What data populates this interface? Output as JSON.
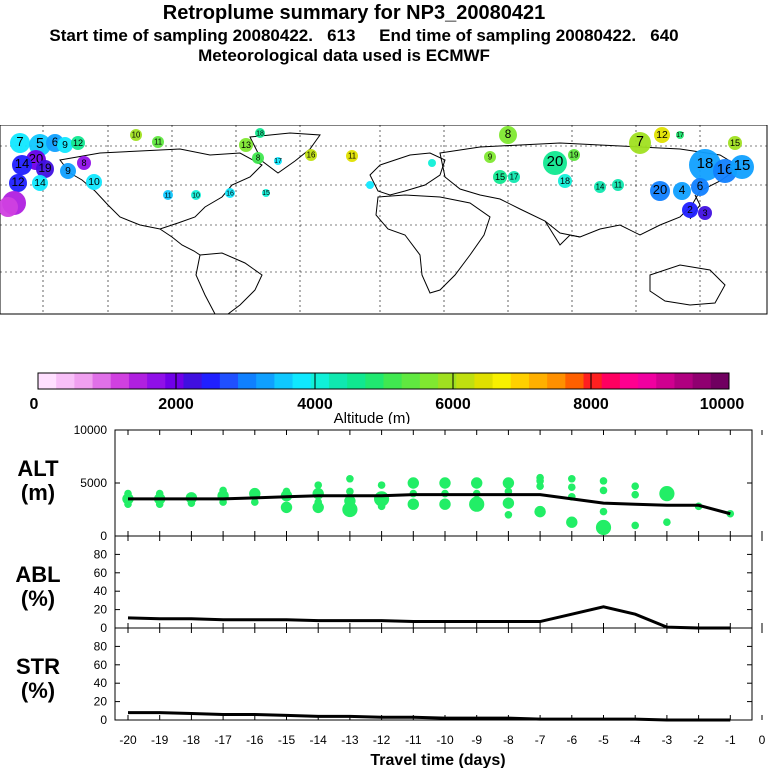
{
  "header": {
    "title": "Retroplume summary for NP3_20080421",
    "sampling": "Start time of sampling 20080422.   613     End time of sampling 20080422.   640",
    "met": "Meteorological data used is ECMWF"
  },
  "colors": {
    "marker": "#22ee66",
    "line": "#000000",
    "colorbar": [
      "#ffe0ff",
      "#f8c0f8",
      "#f0a0f0",
      "#e070e8",
      "#d040e0",
      "#b020e0",
      "#9010e8",
      "#7000e8",
      "#4010e0",
      "#2020ff",
      "#2050ff",
      "#1080ff",
      "#10a0ff",
      "#10c8ff",
      "#10e8ff",
      "#10f0d8",
      "#10e8b0",
      "#10e890",
      "#20e870",
      "#40e850",
      "#60e840",
      "#80e830",
      "#a0e020",
      "#c0e010",
      "#e0e000",
      "#f8f000",
      "#ffd000",
      "#ffb000",
      "#ff9000",
      "#ff6000",
      "#ff2020",
      "#ff0060",
      "#ff0090",
      "#f000a0",
      "#d00090",
      "#b00080",
      "#900070",
      "#700060"
    ]
  },
  "map": {
    "labels": [
      "7",
      "5",
      "6",
      "9",
      "12",
      "10",
      "11",
      "18",
      "13",
      "8",
      "17",
      "16",
      "11",
      "20",
      "14",
      "19",
      "9",
      "8",
      "12",
      "14",
      "10",
      "11",
      "10",
      "16",
      "15",
      "8",
      "9",
      "20",
      "19",
      "15",
      "17",
      "18",
      "14",
      "11",
      "7",
      "12",
      "17",
      "18",
      "16",
      "15",
      "15",
      "20",
      "4",
      "6",
      "2",
      "3"
    ]
  },
  "colorbar": {
    "tick_labels": [
      "0",
      "2000",
      "4000",
      "6000",
      "8000",
      "10000"
    ],
    "title": "Altitude (m)"
  },
  "chart_data": [
    {
      "type": "scatter",
      "panel": "ALT",
      "ylabel_line1": "ALT",
      "ylabel_line2": "(m)",
      "ylim": [
        0,
        10000
      ],
      "yticks": [
        "10000",
        "5000",
        "0"
      ],
      "x": [
        -20,
        -19,
        -18,
        -17,
        -16,
        -15,
        -14,
        -13,
        -12,
        -11,
        -10,
        -9,
        -8,
        -7,
        -6,
        -5,
        -4,
        -3,
        -2,
        -1
      ],
      "line_values": [
        3500,
        3500,
        3500,
        3500,
        3600,
        3700,
        3800,
        3800,
        3800,
        3900,
        3900,
        3900,
        3900,
        3900,
        3500,
        3100,
        3000,
        2900,
        2900,
        2100
      ],
      "points": [
        {
          "x": -20,
          "y": 3500,
          "s": 3
        },
        {
          "x": -20,
          "y": 3000,
          "s": 2
        },
        {
          "x": -20,
          "y": 4000,
          "s": 2
        },
        {
          "x": -19,
          "y": 3500,
          "s": 3
        },
        {
          "x": -19,
          "y": 3000,
          "s": 2
        },
        {
          "x": -19,
          "y": 4000,
          "s": 2
        },
        {
          "x": -18,
          "y": 3600,
          "s": 3
        },
        {
          "x": -18,
          "y": 3100,
          "s": 2
        },
        {
          "x": -17,
          "y": 3800,
          "s": 3
        },
        {
          "x": -17,
          "y": 3200,
          "s": 2
        },
        {
          "x": -17,
          "y": 4300,
          "s": 2
        },
        {
          "x": -16,
          "y": 4000,
          "s": 3
        },
        {
          "x": -16,
          "y": 3200,
          "s": 2
        },
        {
          "x": -15,
          "y": 3800,
          "s": 3
        },
        {
          "x": -15,
          "y": 2700,
          "s": 3
        },
        {
          "x": -15,
          "y": 4200,
          "s": 2
        },
        {
          "x": -14,
          "y": 4000,
          "s": 3
        },
        {
          "x": -14,
          "y": 2700,
          "s": 3
        },
        {
          "x": -14,
          "y": 4800,
          "s": 2
        },
        {
          "x": -14,
          "y": 3200,
          "s": 2
        },
        {
          "x": -13,
          "y": 4200,
          "s": 2
        },
        {
          "x": -13,
          "y": 3300,
          "s": 3
        },
        {
          "x": -13,
          "y": 5400,
          "s": 2
        },
        {
          "x": -13,
          "y": 2500,
          "s": 4
        },
        {
          "x": -12,
          "y": 3500,
          "s": 4
        },
        {
          "x": -12,
          "y": 4800,
          "s": 2
        },
        {
          "x": -12,
          "y": 2800,
          "s": 2
        },
        {
          "x": -11,
          "y": 5000,
          "s": 3
        },
        {
          "x": -11,
          "y": 3000,
          "s": 3
        },
        {
          "x": -11,
          "y": 4000,
          "s": 2
        },
        {
          "x": -10,
          "y": 5000,
          "s": 3
        },
        {
          "x": -10,
          "y": 3000,
          "s": 3
        },
        {
          "x": -10,
          "y": 4000,
          "s": 2
        },
        {
          "x": -9,
          "y": 5000,
          "s": 3
        },
        {
          "x": -9,
          "y": 3000,
          "s": 4
        },
        {
          "x": -9,
          "y": 4000,
          "s": 2
        },
        {
          "x": -8,
          "y": 5000,
          "s": 3
        },
        {
          "x": -8,
          "y": 3100,
          "s": 3
        },
        {
          "x": -8,
          "y": 2000,
          "s": 2
        },
        {
          "x": -8,
          "y": 4200,
          "s": 2
        },
        {
          "x": -7,
          "y": 5500,
          "s": 2
        },
        {
          "x": -7,
          "y": 2300,
          "s": 3
        },
        {
          "x": -7,
          "y": 4700,
          "s": 2
        },
        {
          "x": -7,
          "y": 5200,
          "s": 2
        },
        {
          "x": -6,
          "y": 5400,
          "s": 2
        },
        {
          "x": -6,
          "y": 1300,
          "s": 3
        },
        {
          "x": -6,
          "y": 3700,
          "s": 2
        },
        {
          "x": -6,
          "y": 4600,
          "s": 2
        },
        {
          "x": -5,
          "y": 5200,
          "s": 2
        },
        {
          "x": -5,
          "y": 800,
          "s": 4
        },
        {
          "x": -5,
          "y": 4300,
          "s": 2
        },
        {
          "x": -5,
          "y": 2300,
          "s": 2
        },
        {
          "x": -4,
          "y": 4700,
          "s": 2
        },
        {
          "x": -4,
          "y": 1000,
          "s": 2
        },
        {
          "x": -4,
          "y": 3900,
          "s": 2
        },
        {
          "x": -3,
          "y": 4000,
          "s": 4
        },
        {
          "x": -3,
          "y": 1300,
          "s": 2
        },
        {
          "x": -2,
          "y": 2800,
          "s": 2
        },
        {
          "x": -1,
          "y": 2100,
          "s": 2
        }
      ]
    },
    {
      "type": "line",
      "panel": "ABL",
      "ylabel_line1": "ABL",
      "ylabel_line2": "(%)",
      "ylim": [
        0,
        100
      ],
      "yticks": [
        "80",
        "60",
        "40",
        "20",
        "0"
      ],
      "x": [
        -20,
        -19,
        -18,
        -17,
        -16,
        -15,
        -14,
        -13,
        -12,
        -11,
        -10,
        -9,
        -8,
        -7,
        -6,
        -5,
        -4,
        -3,
        -2,
        -1
      ],
      "values": [
        11,
        10,
        10,
        9,
        9,
        9,
        8,
        8,
        8,
        7,
        7,
        7,
        7,
        7,
        15,
        23,
        15,
        1,
        0,
        0
      ]
    },
    {
      "type": "line",
      "panel": "STR",
      "ylabel_line1": "STR",
      "ylabel_line2": "(%)",
      "ylim": [
        0,
        100
      ],
      "yticks": [
        "80",
        "60",
        "40",
        "20",
        "0"
      ],
      "x": [
        -20,
        -19,
        -18,
        -17,
        -16,
        -15,
        -14,
        -13,
        -12,
        -11,
        -10,
        -9,
        -8,
        -7,
        -6,
        -5,
        -4,
        -3,
        -2,
        -1
      ],
      "values": [
        8,
        8,
        7,
        6,
        6,
        5,
        4,
        4,
        3,
        3,
        2,
        2,
        2,
        1,
        1,
        1,
        1,
        0,
        0,
        0
      ]
    }
  ],
  "xaxis": {
    "ticks": [
      "-20",
      "-19",
      "-18",
      "-17",
      "-16",
      "-15",
      "-14",
      "-13",
      "-12",
      "-11",
      "-10",
      "-9",
      "-8",
      "-7",
      "-6",
      "-5",
      "-4",
      "-3",
      "-2",
      "-1",
      "0"
    ],
    "label": "Travel time (days)"
  }
}
